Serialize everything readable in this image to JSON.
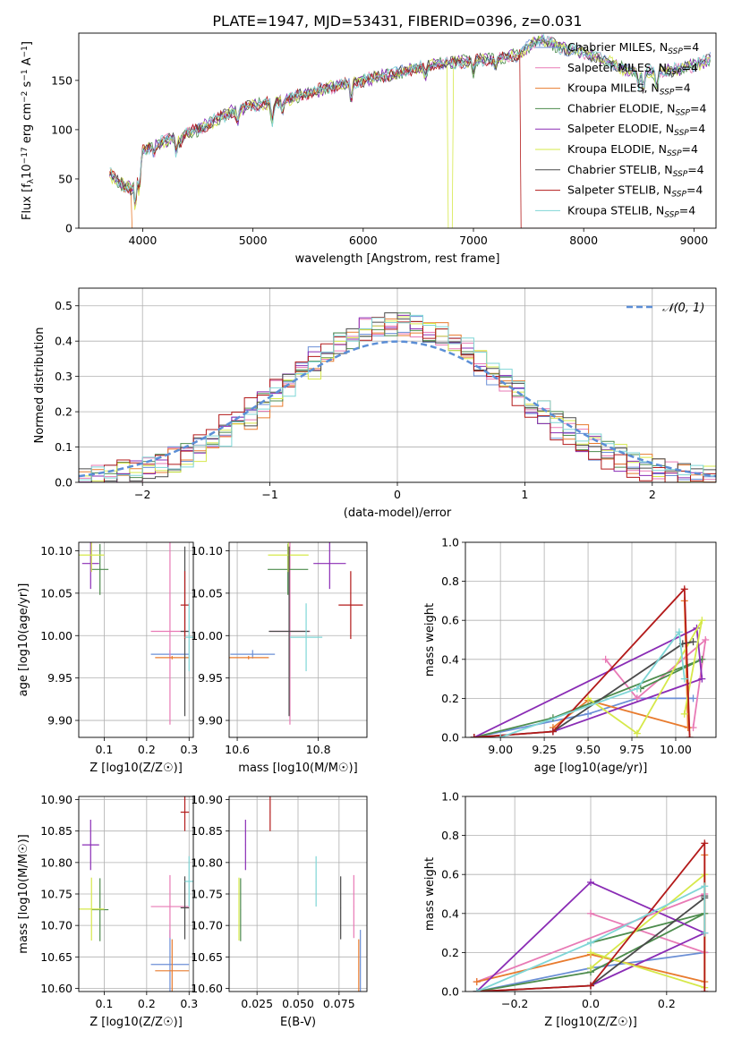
{
  "figure": {
    "title": "PLATE=1947, MJD=53431, FIBERID=0396, z=0.031"
  },
  "colors": {
    "Chabrier MILES": "#6b8fd6",
    "Salpeter MILES": "#e87ab5",
    "Kroupa MILES": "#e87b2e",
    "Chabrier ELODIE": "#4d8c4d",
    "Salpeter ELODIE": "#8a2cb5",
    "Kroupa ELODIE": "#d6e84a",
    "Chabrier STELIB": "#4a4a4a",
    "Salpeter STELIB": "#b31a1a",
    "Kroupa STELIB": "#7fd6d6"
  },
  "chart_data": [
    {
      "type": "line",
      "panel": "spectrum",
      "xlabel": "wavelength [Angstrom, rest frame]",
      "ylabel": "Flux [f_λ 10^-17 erg cm^-2 s^-1 A^-1]",
      "xlim": [
        3420,
        9200
      ],
      "ylim": [
        0,
        198
      ],
      "xticks": [
        4000,
        5000,
        6000,
        7000,
        8000,
        9000
      ],
      "yticks": [
        0,
        50,
        100,
        150
      ],
      "grid": false,
      "legend_position": "top-right",
      "legend": [
        "Chabrier MILES, N_SSP=4",
        "Salpeter MILES, N_SSP=4",
        "Kroupa MILES, N_SSP=4",
        "Chabrier ELODIE, N_SSP=4",
        "Salpeter ELODIE, N_SSP=4",
        "Kroupa ELODIE, N_SSP=4",
        "Chabrier STELIB, N_SSP=4",
        "Salpeter STELIB, N_SSP=4",
        "Kroupa STELIB, N_SSP=4"
      ],
      "continuum": {
        "x": [
          3700,
          3800,
          3900,
          4000,
          4100,
          4300,
          4500,
          4800,
          5000,
          5200,
          5400,
          5600,
          5800,
          6000,
          6200,
          6400,
          6600,
          6800,
          7000,
          7200,
          7400,
          7600,
          7800,
          8000,
          8200,
          8400,
          8600,
          8800,
          9000,
          9150
        ],
        "y": [
          55,
          45,
          40,
          78,
          85,
          92,
          100,
          118,
          125,
          128,
          134,
          140,
          146,
          150,
          155,
          160,
          165,
          168,
          170,
          172,
          176,
          192,
          183,
          178,
          170,
          160,
          158,
          160,
          165,
          172
        ]
      },
      "absorption_lines": [
        {
          "x": 3934,
          "depth": 30
        },
        {
          "x": 3969,
          "depth": 28
        },
        {
          "x": 4102,
          "depth": 8
        },
        {
          "x": 4304,
          "depth": 15
        },
        {
          "x": 4341,
          "depth": 8
        },
        {
          "x": 4861,
          "depth": 12
        },
        {
          "x": 5175,
          "depth": 22
        },
        {
          "x": 5270,
          "depth": 10
        },
        {
          "x": 5892,
          "depth": 18
        },
        {
          "x": 6563,
          "depth": 10
        },
        {
          "x": 7000,
          "depth": 12
        },
        {
          "x": 7200,
          "depth": 8
        },
        {
          "x": 8498,
          "depth": 14
        },
        {
          "x": 8542,
          "depth": 18
        },
        {
          "x": 8662,
          "depth": 16
        }
      ],
      "drops": [
        {
          "series": "Kroupa MILES",
          "x": 3900,
          "y": 0
        },
        {
          "series": "Kroupa ELODIE",
          "x": 6770,
          "y": 0
        },
        {
          "series": "Salpeter STELIB",
          "x": 7420,
          "y": 0
        }
      ]
    },
    {
      "type": "step",
      "panel": "residuals",
      "xlabel": "(data-model)/error",
      "ylabel": "Normed distribution",
      "xlim": [
        -2.5,
        2.5
      ],
      "ylim": [
        0,
        0.55
      ],
      "xticks": [
        -2,
        -1,
        0,
        1,
        2
      ],
      "yticks": [
        0.0,
        0.1,
        0.2,
        0.3,
        0.4,
        0.5
      ],
      "grid": true,
      "legend_position": "top-right",
      "reference_curve": {
        "name": "N(0,1)",
        "mu": 0,
        "sigma": 1
      },
      "bin_width": 0.1,
      "series_offsets": [
        -0.04,
        0.0,
        0.04,
        0.02,
        -0.02,
        0.06,
        0.03,
        -0.06,
        0.05
      ]
    },
    {
      "type": "scatter",
      "panel": "age_vs_Z",
      "xlabel": "Z [log10(Z/Z☉)]",
      "ylabel": "age [log10(age/yr)]",
      "xlim": [
        0.04,
        0.31
      ],
      "ylim": [
        9.88,
        10.11
      ],
      "xticks": [
        0.1,
        0.2,
        0.3
      ],
      "yticks": [
        9.9,
        9.95,
        10.0,
        10.05,
        10.1
      ],
      "grid": true
    },
    {
      "type": "scatter",
      "panel": "age_vs_mass",
      "xlabel": "mass [log10(M/M☉)]",
      "ylabel": "",
      "xlim": [
        10.58,
        10.92
      ],
      "ylim": [
        9.88,
        10.11
      ],
      "xticks": [
        10.6,
        10.8
      ],
      "yticks": [
        9.9,
        9.95,
        10.0,
        10.05,
        10.1
      ],
      "grid": true
    },
    {
      "type": "line",
      "panel": "weight_vs_age",
      "xlabel": "age [log10(age/yr)]",
      "ylabel": "mass weight",
      "xlim": [
        8.8,
        10.23
      ],
      "ylim": [
        0,
        1.0
      ],
      "xticks": [
        9.0,
        9.25,
        9.5,
        9.75,
        10.0
      ],
      "yticks": [
        0.0,
        0.2,
        0.4,
        0.6,
        0.8,
        1.0
      ],
      "grid": true
    },
    {
      "type": "scatter",
      "panel": "mass_vs_Z",
      "xlabel": "Z [log10(Z/Z☉)]",
      "ylabel": "mass [log10(M/M☉)]",
      "xlim": [
        0.04,
        0.31
      ],
      "ylim": [
        10.595,
        10.905
      ],
      "xticks": [
        0.1,
        0.2,
        0.3
      ],
      "yticks": [
        10.6,
        10.65,
        10.7,
        10.75,
        10.8,
        10.85,
        10.9
      ],
      "grid": true
    },
    {
      "type": "scatter",
      "panel": "mass_vs_EBV",
      "xlabel": "E(B-V)",
      "ylabel": "",
      "xlim": [
        0.008,
        0.092
      ],
      "ylim": [
        10.595,
        10.905
      ],
      "xticks": [
        0.025,
        0.05,
        0.075
      ],
      "xticklabels": [
        "0.025",
        "0.050",
        "0.075"
      ],
      "yticks": [
        10.6,
        10.65,
        10.7,
        10.75,
        10.8,
        10.85,
        10.9
      ],
      "grid": true
    },
    {
      "type": "line",
      "panel": "weight_vs_Z",
      "xlabel": "Z [log10(Z/Z☉)]",
      "ylabel": "mass weight",
      "xlim": [
        -0.33,
        0.33
      ],
      "ylim": [
        0,
        1.0
      ],
      "xticks": [
        -0.2,
        0.0,
        0.2
      ],
      "yticks": [
        0.0,
        0.2,
        0.4,
        0.6,
        0.8,
        1.0
      ],
      "grid": true
    }
  ],
  "fits": [
    {
      "name": "Chabrier MILES",
      "Z": 0.255,
      "Zerr": 0.045,
      "age": 9.978,
      "ageErr": 0.005,
      "mass": 10.638,
      "massErr": 0.055,
      "ebv": 0.088,
      "ebvErr": 0.0002,
      "ssp": [
        {
          "age": 8.85,
          "Z": -0.3,
          "w": 0.0
        },
        {
          "age": 9.5,
          "Z": 0.0,
          "w": 0.12
        },
        {
          "age": 9.78,
          "Z": 0.3,
          "w": 0.2
        },
        {
          "age": 10.1,
          "Z": 0.3,
          "w": 0.2
        }
      ]
    },
    {
      "name": "Salpeter MILES",
      "Z": 0.255,
      "Zerr": 0.045,
      "age": 10.005,
      "ageErr": 0.11,
      "mass": 10.73,
      "massErr": 0.05,
      "ebv": 0.084,
      "ebvErr": 0.0002,
      "ssp": [
        {
          "age": 9.6,
          "Z": 0.0,
          "w": 0.4
        },
        {
          "age": 9.78,
          "Z": 0.3,
          "w": 0.2
        },
        {
          "age": 10.17,
          "Z": 0.3,
          "w": 0.5
        },
        {
          "age": 10.1,
          "Z": -0.3,
          "w": 0.05
        }
      ]
    },
    {
      "name": "Kroupa MILES",
      "Z": 0.26,
      "Zerr": 0.04,
      "age": 9.974,
      "ageErr": 0.002,
      "mass": 10.628,
      "massErr": 0.05,
      "ebv": 0.087,
      "ebvErr": 0.0002,
      "ssp": [
        {
          "age": 9.3,
          "Z": -0.3,
          "w": 0.05
        },
        {
          "age": 9.5,
          "Z": 0.0,
          "w": 0.19
        },
        {
          "age": 10.07,
          "Z": 0.3,
          "w": 0.05
        },
        {
          "age": 10.05,
          "Z": 0.3,
          "w": 0.7
        }
      ]
    },
    {
      "name": "Chabrier ELODIE",
      "Z": 0.09,
      "Zerr": 0.02,
      "age": 10.078,
      "ageErr": 0.03,
      "mass": 10.725,
      "massErr": 0.05,
      "ebv": 0.015,
      "ebvErr": 0.0002,
      "ssp": [
        {
          "age": 8.85,
          "Z": -0.3,
          "w": 0.0
        },
        {
          "age": 9.3,
          "Z": 0.0,
          "w": 0.1
        },
        {
          "age": 10.15,
          "Z": 0.3,
          "w": 0.4
        },
        {
          "age": 9.8,
          "Z": 0.0,
          "w": 0.25
        }
      ]
    },
    {
      "name": "Salpeter ELODIE",
      "Z": 0.068,
      "Zerr": 0.02,
      "age": 10.085,
      "ageErr": 0.03,
      "mass": 10.828,
      "massErr": 0.04,
      "ebv": 0.018,
      "ebvErr": 0.0002,
      "ssp": [
        {
          "age": 8.85,
          "Z": -0.3,
          "w": 0.0
        },
        {
          "age": 10.12,
          "Z": 0.0,
          "w": 0.56
        },
        {
          "age": 10.15,
          "Z": 0.3,
          "w": 0.3
        },
        {
          "age": 9.3,
          "Z": 0.0,
          "w": 0.03
        }
      ]
    },
    {
      "name": "Kroupa ELODIE",
      "Z": 0.07,
      "Zerr": 0.03,
      "age": 10.095,
      "ageErr": 0.02,
      "mass": 10.726,
      "massErr": 0.05,
      "ebv": 0.014,
      "ebvErr": 0.0002,
      "ssp": [
        {
          "age": 9.5,
          "Z": 0.0,
          "w": 0.2
        },
        {
          "age": 9.78,
          "Z": 0.3,
          "w": 0.02
        },
        {
          "age": 10.15,
          "Z": 0.3,
          "w": 0.6
        },
        {
          "age": 10.05,
          "Z": 0.0,
          "w": 0.12
        }
      ]
    },
    {
      "name": "Chabrier STELIB",
      "Z": 0.29,
      "Zerr": 0.01,
      "age": 10.005,
      "ageErr": 0.1,
      "mass": 10.728,
      "massErr": 0.05,
      "ebv": 0.076,
      "ebvErr": 0.0002,
      "ssp": [
        {
          "age": 8.85,
          "Z": -0.3,
          "w": 0.0
        },
        {
          "age": 9.3,
          "Z": 0.0,
          "w": 0.03
        },
        {
          "age": 10.04,
          "Z": 0.3,
          "w": 0.48
        },
        {
          "age": 10.1,
          "Z": 0.3,
          "w": 0.49
        }
      ]
    },
    {
      "name": "Salpeter STELIB",
      "Z": 0.29,
      "Zerr": 0.01,
      "age": 10.036,
      "ageErr": 0.04,
      "mass": 10.88,
      "massErr": 0.03,
      "ebv": 0.033,
      "ebvErr": 0.0002,
      "ssp": [
        {
          "age": 8.85,
          "Z": -0.3,
          "w": 0.0
        },
        {
          "age": 9.3,
          "Z": 0.0,
          "w": 0.03
        },
        {
          "age": 10.05,
          "Z": 0.3,
          "w": 0.76
        },
        {
          "age": 10.08,
          "Z": 0.3,
          "w": 0.0
        }
      ]
    },
    {
      "name": "Kroupa STELIB",
      "Z": 0.3,
      "Zerr": 0.01,
      "age": 9.998,
      "ageErr": 0.04,
      "mass": 10.77,
      "massErr": 0.04,
      "ebv": 0.061,
      "ebvErr": 0.0002,
      "ssp": [
        {
          "age": 9.0,
          "Z": -0.3,
          "w": 0.0
        },
        {
          "age": 9.78,
          "Z": 0.0,
          "w": 0.25
        },
        {
          "age": 10.02,
          "Z": 0.3,
          "w": 0.54
        },
        {
          "age": 10.05,
          "Z": 0.3,
          "w": 0.3
        }
      ]
    }
  ]
}
